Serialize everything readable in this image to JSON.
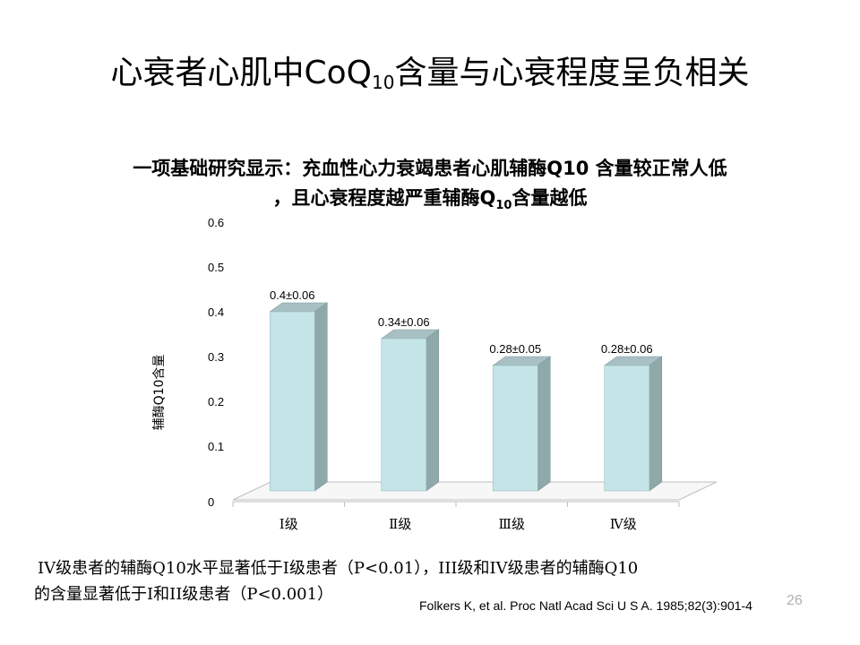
{
  "slide": {
    "title_main": "心衰者心肌中CoQ",
    "title_sub": "10",
    "title_tail": "含量与心衰程度呈负相关",
    "subtitle_line1": "一项基础研究显示：充血性心力衰竭患者心肌辅酶Q10 含量较正常人低",
    "subtitle_line2_a": "，且心衰程度越严重辅酶Q",
    "subtitle_line2_sub": "10",
    "subtitle_line2_b": "含量越低",
    "conclusion_line1": "IV级患者的辅酶Q10水平显著低于I级患者（P<0.01），III级和IV级患者的辅酶Q10",
    "conclusion_line2": "的含量显著低于I和II级患者（P<0.001）",
    "citation": "Folkers K, et al. Proc Natl Acad Sci U S A. 1985;82(3):901-4",
    "page_number": "26"
  },
  "colors": {
    "bar_front": "#c4e4e8",
    "bar_side": "#8fa8aa",
    "bar_top": "#a8c0c3",
    "axis": "#bfbfbf"
  },
  "chart_data": {
    "type": "bar",
    "categories": [
      "Ⅰ级",
      "Ⅱ级",
      "Ⅲ级",
      "Ⅳ级"
    ],
    "values": [
      0.4,
      0.34,
      0.28,
      0.28
    ],
    "data_labels": [
      "0.4±0.06",
      "0.34±0.06",
      "0.28±0.05",
      "0.28±0.06"
    ],
    "ylabel": "辅酶Q10含量",
    "xlabel": "",
    "ylim": [
      0,
      0.6
    ],
    "yticks": [
      "0",
      "0.1",
      "0.2",
      "0.3",
      "0.4",
      "0.5",
      "0.6"
    ],
    "grid": false,
    "legend": "none",
    "style": "3d"
  }
}
